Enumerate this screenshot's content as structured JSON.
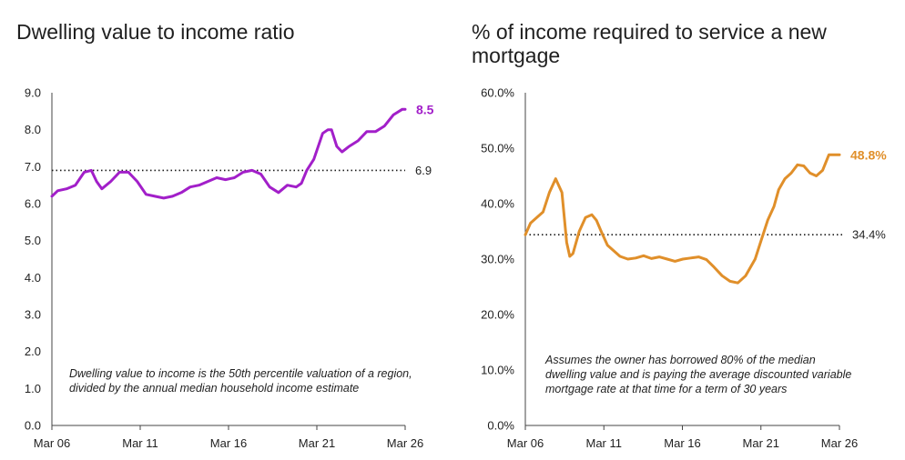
{
  "chart_data": [
    {
      "type": "line",
      "title": "Dwelling value to income ratio",
      "xlabel": "",
      "ylabel": "",
      "x_ticks": [
        "Mar 06",
        "Mar 11",
        "Mar 16",
        "Mar 21",
        "Mar 26"
      ],
      "y_ticks": [
        "0.0",
        "1.0",
        "2.0",
        "3.0",
        "4.0",
        "5.0",
        "6.0",
        "7.0",
        "8.0",
        "9.0"
      ],
      "ylim": [
        0,
        9
      ],
      "xlim": [
        2006.17,
        2026.17
      ],
      "grid": false,
      "color": "#a21fc9",
      "series": [
        {
          "x": [
            2006.17,
            2006.5,
            2007.0,
            2007.5,
            2008.0,
            2008.4,
            2008.7,
            2009.0,
            2009.5,
            2010.0,
            2010.5,
            2011.0,
            2011.5,
            2012.0,
            2012.5,
            2013.0,
            2013.5,
            2014.0,
            2014.5,
            2015.0,
            2015.5,
            2016.0,
            2016.5,
            2017.0,
            2017.5,
            2018.0,
            2018.5,
            2019.0,
            2019.5,
            2020.0,
            2020.3,
            2020.6,
            2021.0,
            2021.5,
            2021.8,
            2022.0,
            2022.3,
            2022.6,
            2023.0,
            2023.5,
            2024.0,
            2024.5,
            2025.0,
            2025.5,
            2026.0,
            2026.17
          ],
          "values": [
            6.2,
            6.35,
            6.4,
            6.5,
            6.85,
            6.9,
            6.6,
            6.4,
            6.6,
            6.85,
            6.85,
            6.6,
            6.25,
            6.2,
            6.15,
            6.2,
            6.3,
            6.45,
            6.5,
            6.6,
            6.7,
            6.65,
            6.7,
            6.85,
            6.9,
            6.8,
            6.45,
            6.3,
            6.5,
            6.45,
            6.55,
            6.9,
            7.2,
            7.9,
            8.0,
            8.0,
            7.55,
            7.4,
            7.55,
            7.7,
            7.95,
            7.95,
            8.1,
            8.4,
            8.55,
            8.55
          ]
        }
      ],
      "reference_line": {
        "value": 6.9,
        "label": "6.9"
      },
      "end_label": "8.5",
      "annotation": "Dwelling value to income is the 50th percentile valuation of a region, divided by the annual median household income estimate"
    },
    {
      "type": "line",
      "title": "% of income required to service a new mortgage",
      "xlabel": "",
      "ylabel": "",
      "x_ticks": [
        "Mar 06",
        "Mar 11",
        "Mar 16",
        "Mar 21",
        "Mar 26"
      ],
      "y_ticks": [
        "0.0%",
        "10.0%",
        "20.0%",
        "30.0%",
        "40.0%",
        "50.0%",
        "60.0%"
      ],
      "ylim": [
        0,
        60
      ],
      "xlim": [
        2006.17,
        2026.17
      ],
      "grid": false,
      "color": "#e08f2a",
      "series": [
        {
          "x": [
            2006.17,
            2006.5,
            2006.9,
            2007.3,
            2007.7,
            2008.1,
            2008.5,
            2008.8,
            2009.0,
            2009.2,
            2009.6,
            2010.0,
            2010.4,
            2010.7,
            2011.0,
            2011.4,
            2011.8,
            2012.2,
            2012.7,
            2013.2,
            2013.7,
            2014.2,
            2014.7,
            2015.2,
            2015.7,
            2016.2,
            2016.7,
            2017.2,
            2017.7,
            2018.2,
            2018.7,
            2019.2,
            2019.7,
            2020.2,
            2020.5,
            2020.8,
            2021.2,
            2021.6,
            2022.0,
            2022.3,
            2022.7,
            2023.1,
            2023.5,
            2023.9,
            2024.3,
            2024.7,
            2025.1,
            2025.5,
            2025.9,
            2026.17
          ],
          "values": [
            34.4,
            36.5,
            37.5,
            38.5,
            42.0,
            44.5,
            42.0,
            33.0,
            30.5,
            31.0,
            35.0,
            37.5,
            38.0,
            37.0,
            35.0,
            32.5,
            31.5,
            30.5,
            30.0,
            30.2,
            30.6,
            30.1,
            30.4,
            30.0,
            29.6,
            30.0,
            30.2,
            30.4,
            29.9,
            28.5,
            27.0,
            26.0,
            25.7,
            27.0,
            28.5,
            30.0,
            33.5,
            37.0,
            39.5,
            42.5,
            44.5,
            45.5,
            47.0,
            46.8,
            45.5,
            45.0,
            46.0,
            48.8,
            48.8,
            48.8
          ]
        }
      ],
      "reference_line": {
        "value": 34.4,
        "label": "34.4%"
      },
      "end_label": "48.8%",
      "annotation": "Assumes the owner has borrowed 80% of the median dwelling value and is paying the average discounted variable mortgage rate at that time for a term of 30 years"
    }
  ]
}
